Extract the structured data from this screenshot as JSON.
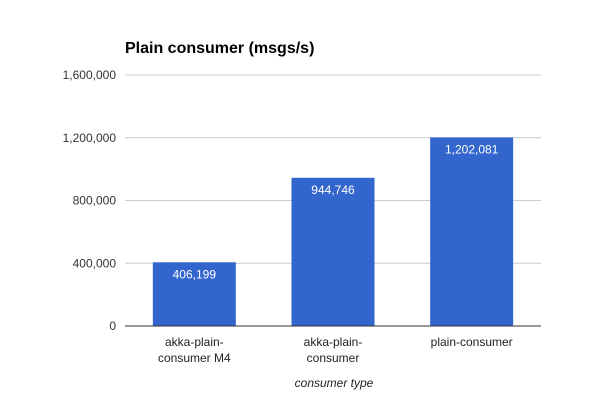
{
  "chart_data": {
    "type": "bar",
    "title": "Plain consumer (msgs/s)",
    "xlabel": "consumer type",
    "ylabel": "",
    "categories": [
      [
        "akka-plain-",
        "consumer M4"
      ],
      [
        "akka-plain-",
        "consumer"
      ],
      [
        "plain-consumer"
      ]
    ],
    "values": [
      406199,
      944746,
      1202081
    ],
    "data_labels": [
      "406,199",
      "944,746",
      "1,202,081"
    ],
    "yticks": [
      0,
      400000,
      800000,
      1200000,
      1600000
    ],
    "ytick_labels": [
      "0",
      "400,000",
      "800,000",
      "1,200,000",
      "1,600,000"
    ],
    "ylim": [
      0,
      1600000
    ],
    "grid": true,
    "legend": "none",
    "colors": {
      "bar": "#3366cc",
      "grid": "#cccccc",
      "axis": "#333333"
    }
  }
}
